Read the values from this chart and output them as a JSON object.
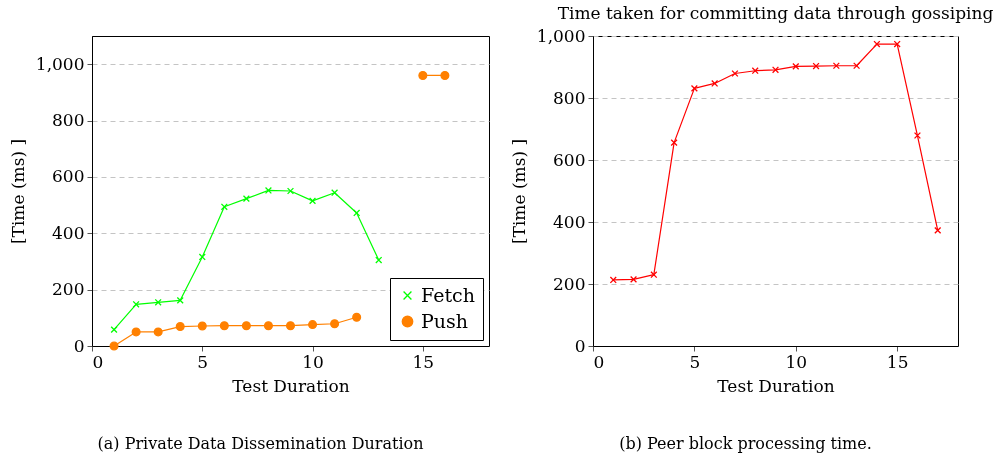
{
  "chart_data": [
    {
      "type": "line",
      "xlabel": "Test Duration",
      "ylabel": "[Time (ms) ]",
      "x": [
        1,
        2,
        3,
        4,
        5,
        6,
        7,
        8,
        9,
        10,
        11,
        12,
        13,
        14,
        15,
        16
      ],
      "series": [
        {
          "name": "Fetch",
          "color": "#00ff00",
          "marker": "cross",
          "x": [
            1,
            2,
            3,
            4,
            5,
            6,
            7,
            8,
            9,
            10,
            11,
            12,
            13
          ],
          "values": [
            58,
            148,
            155,
            162,
            316,
            494,
            523,
            552,
            550,
            515,
            544,
            472,
            305
          ]
        },
        {
          "name": "Push",
          "color": "#ff8000",
          "marker": "circle",
          "values": [
            0,
            50,
            50,
            69,
            71,
            72,
            72,
            72,
            72,
            76,
            79,
            102,
            null,
            null,
            960,
            960
          ]
        }
      ],
      "xlim": [
        0,
        18
      ],
      "ylim": [
        0,
        1100
      ],
      "xticks": [
        0,
        5,
        10,
        15
      ],
      "yticks": [
        0,
        200,
        400,
        600,
        800,
        {
          "value": 1000,
          "label": "1,000"
        }
      ],
      "grid": "y",
      "legend": "bottom right",
      "annotations": [
        "(a) Private Data Dissemination Duration"
      ]
    },
    {
      "type": "line",
      "title": "Time taken for committing data through gossiping",
      "xlabel": "Test Duration",
      "ylabel": "[Time (ms) ]",
      "x": [
        1,
        2,
        3,
        4,
        5,
        6,
        7,
        8,
        9,
        10,
        11,
        12,
        13,
        14,
        15,
        16,
        17
      ],
      "series": [
        {
          "color": "#ff0000",
          "marker": "cross",
          "values": [
            213,
            215,
            230,
            656,
            831,
            847,
            879,
            888,
            891,
            902,
            903,
            904,
            904,
            974,
            974,
            679,
            373
          ]
        }
      ],
      "xlim": [
        0,
        18
      ],
      "ylim": [
        0,
        1000
      ],
      "xticks": [
        0,
        5,
        10,
        15
      ],
      "yticks": [
        0,
        200,
        400,
        600,
        800,
        {
          "value": 1000,
          "label": "1,000"
        }
      ],
      "grid": "y",
      "annotations": [
        "(b) Peer block processing time."
      ]
    }
  ]
}
